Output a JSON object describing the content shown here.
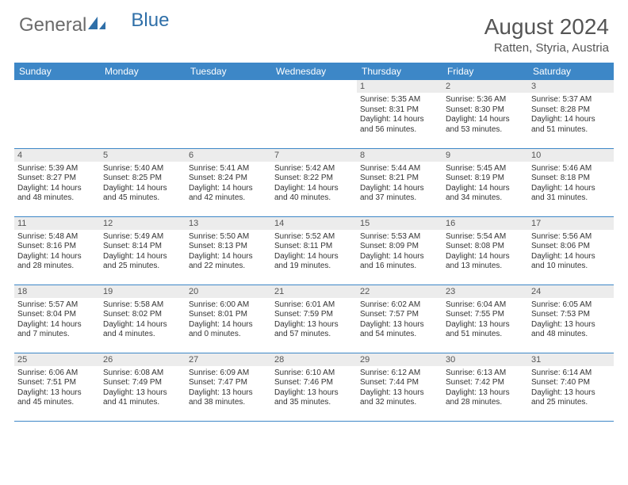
{
  "logo": {
    "part1": "General",
    "part2": "Blue"
  },
  "title": "August 2024",
  "location": "Ratten, Styria, Austria",
  "colors": {
    "header_bg": "#3d87c7",
    "header_text": "#ffffff",
    "daynum_bg": "#ececec",
    "border": "#3d87c7",
    "logo_gray": "#6b6b6b",
    "logo_blue": "#2f6fa8"
  },
  "weekdays": [
    "Sunday",
    "Monday",
    "Tuesday",
    "Wednesday",
    "Thursday",
    "Friday",
    "Saturday"
  ],
  "weeks": [
    [
      {
        "empty": true
      },
      {
        "empty": true
      },
      {
        "empty": true
      },
      {
        "empty": true
      },
      {
        "day": "1",
        "sunrise": "Sunrise: 5:35 AM",
        "sunset": "Sunset: 8:31 PM",
        "daylight1": "Daylight: 14 hours",
        "daylight2": "and 56 minutes."
      },
      {
        "day": "2",
        "sunrise": "Sunrise: 5:36 AM",
        "sunset": "Sunset: 8:30 PM",
        "daylight1": "Daylight: 14 hours",
        "daylight2": "and 53 minutes."
      },
      {
        "day": "3",
        "sunrise": "Sunrise: 5:37 AM",
        "sunset": "Sunset: 8:28 PM",
        "daylight1": "Daylight: 14 hours",
        "daylight2": "and 51 minutes."
      }
    ],
    [
      {
        "day": "4",
        "sunrise": "Sunrise: 5:39 AM",
        "sunset": "Sunset: 8:27 PM",
        "daylight1": "Daylight: 14 hours",
        "daylight2": "and 48 minutes."
      },
      {
        "day": "5",
        "sunrise": "Sunrise: 5:40 AM",
        "sunset": "Sunset: 8:25 PM",
        "daylight1": "Daylight: 14 hours",
        "daylight2": "and 45 minutes."
      },
      {
        "day": "6",
        "sunrise": "Sunrise: 5:41 AM",
        "sunset": "Sunset: 8:24 PM",
        "daylight1": "Daylight: 14 hours",
        "daylight2": "and 42 minutes."
      },
      {
        "day": "7",
        "sunrise": "Sunrise: 5:42 AM",
        "sunset": "Sunset: 8:22 PM",
        "daylight1": "Daylight: 14 hours",
        "daylight2": "and 40 minutes."
      },
      {
        "day": "8",
        "sunrise": "Sunrise: 5:44 AM",
        "sunset": "Sunset: 8:21 PM",
        "daylight1": "Daylight: 14 hours",
        "daylight2": "and 37 minutes."
      },
      {
        "day": "9",
        "sunrise": "Sunrise: 5:45 AM",
        "sunset": "Sunset: 8:19 PM",
        "daylight1": "Daylight: 14 hours",
        "daylight2": "and 34 minutes."
      },
      {
        "day": "10",
        "sunrise": "Sunrise: 5:46 AM",
        "sunset": "Sunset: 8:18 PM",
        "daylight1": "Daylight: 14 hours",
        "daylight2": "and 31 minutes."
      }
    ],
    [
      {
        "day": "11",
        "sunrise": "Sunrise: 5:48 AM",
        "sunset": "Sunset: 8:16 PM",
        "daylight1": "Daylight: 14 hours",
        "daylight2": "and 28 minutes."
      },
      {
        "day": "12",
        "sunrise": "Sunrise: 5:49 AM",
        "sunset": "Sunset: 8:14 PM",
        "daylight1": "Daylight: 14 hours",
        "daylight2": "and 25 minutes."
      },
      {
        "day": "13",
        "sunrise": "Sunrise: 5:50 AM",
        "sunset": "Sunset: 8:13 PM",
        "daylight1": "Daylight: 14 hours",
        "daylight2": "and 22 minutes."
      },
      {
        "day": "14",
        "sunrise": "Sunrise: 5:52 AM",
        "sunset": "Sunset: 8:11 PM",
        "daylight1": "Daylight: 14 hours",
        "daylight2": "and 19 minutes."
      },
      {
        "day": "15",
        "sunrise": "Sunrise: 5:53 AM",
        "sunset": "Sunset: 8:09 PM",
        "daylight1": "Daylight: 14 hours",
        "daylight2": "and 16 minutes."
      },
      {
        "day": "16",
        "sunrise": "Sunrise: 5:54 AM",
        "sunset": "Sunset: 8:08 PM",
        "daylight1": "Daylight: 14 hours",
        "daylight2": "and 13 minutes."
      },
      {
        "day": "17",
        "sunrise": "Sunrise: 5:56 AM",
        "sunset": "Sunset: 8:06 PM",
        "daylight1": "Daylight: 14 hours",
        "daylight2": "and 10 minutes."
      }
    ],
    [
      {
        "day": "18",
        "sunrise": "Sunrise: 5:57 AM",
        "sunset": "Sunset: 8:04 PM",
        "daylight1": "Daylight: 14 hours",
        "daylight2": "and 7 minutes."
      },
      {
        "day": "19",
        "sunrise": "Sunrise: 5:58 AM",
        "sunset": "Sunset: 8:02 PM",
        "daylight1": "Daylight: 14 hours",
        "daylight2": "and 4 minutes."
      },
      {
        "day": "20",
        "sunrise": "Sunrise: 6:00 AM",
        "sunset": "Sunset: 8:01 PM",
        "daylight1": "Daylight: 14 hours",
        "daylight2": "and 0 minutes."
      },
      {
        "day": "21",
        "sunrise": "Sunrise: 6:01 AM",
        "sunset": "Sunset: 7:59 PM",
        "daylight1": "Daylight: 13 hours",
        "daylight2": "and 57 minutes."
      },
      {
        "day": "22",
        "sunrise": "Sunrise: 6:02 AM",
        "sunset": "Sunset: 7:57 PM",
        "daylight1": "Daylight: 13 hours",
        "daylight2": "and 54 minutes."
      },
      {
        "day": "23",
        "sunrise": "Sunrise: 6:04 AM",
        "sunset": "Sunset: 7:55 PM",
        "daylight1": "Daylight: 13 hours",
        "daylight2": "and 51 minutes."
      },
      {
        "day": "24",
        "sunrise": "Sunrise: 6:05 AM",
        "sunset": "Sunset: 7:53 PM",
        "daylight1": "Daylight: 13 hours",
        "daylight2": "and 48 minutes."
      }
    ],
    [
      {
        "day": "25",
        "sunrise": "Sunrise: 6:06 AM",
        "sunset": "Sunset: 7:51 PM",
        "daylight1": "Daylight: 13 hours",
        "daylight2": "and 45 minutes."
      },
      {
        "day": "26",
        "sunrise": "Sunrise: 6:08 AM",
        "sunset": "Sunset: 7:49 PM",
        "daylight1": "Daylight: 13 hours",
        "daylight2": "and 41 minutes."
      },
      {
        "day": "27",
        "sunrise": "Sunrise: 6:09 AM",
        "sunset": "Sunset: 7:47 PM",
        "daylight1": "Daylight: 13 hours",
        "daylight2": "and 38 minutes."
      },
      {
        "day": "28",
        "sunrise": "Sunrise: 6:10 AM",
        "sunset": "Sunset: 7:46 PM",
        "daylight1": "Daylight: 13 hours",
        "daylight2": "and 35 minutes."
      },
      {
        "day": "29",
        "sunrise": "Sunrise: 6:12 AM",
        "sunset": "Sunset: 7:44 PM",
        "daylight1": "Daylight: 13 hours",
        "daylight2": "and 32 minutes."
      },
      {
        "day": "30",
        "sunrise": "Sunrise: 6:13 AM",
        "sunset": "Sunset: 7:42 PM",
        "daylight1": "Daylight: 13 hours",
        "daylight2": "and 28 minutes."
      },
      {
        "day": "31",
        "sunrise": "Sunrise: 6:14 AM",
        "sunset": "Sunset: 7:40 PM",
        "daylight1": "Daylight: 13 hours",
        "daylight2": "and 25 minutes."
      }
    ]
  ]
}
